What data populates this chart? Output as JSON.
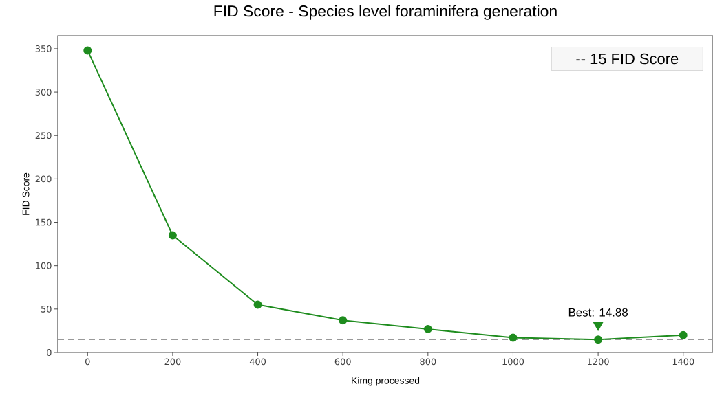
{
  "chart_data": {
    "type": "line",
    "title": "FID Score - Species level foraminifera generation",
    "xlabel": "Kimg processed",
    "ylabel": "FID Score",
    "x": [
      0,
      200,
      400,
      600,
      800,
      1000,
      1200,
      1400
    ],
    "series": [
      {
        "color": "#1e8c1e",
        "values": [
          348,
          135,
          55,
          37,
          27,
          17,
          14.88,
          20
        ]
      }
    ],
    "marker": "circle",
    "line_style": "solid",
    "xlim": [
      -70,
      1470
    ],
    "ylim": [
      0,
      365
    ],
    "xticks": [
      0,
      200,
      400,
      600,
      800,
      1000,
      1200,
      1400
    ],
    "yticks": [
      0,
      50,
      100,
      150,
      200,
      250,
      300,
      350
    ],
    "ref_lines": [
      {
        "axis": "y",
        "value": 15,
        "color": "#999999",
        "line_style": "dashed"
      }
    ],
    "annotations": [
      "-- 15 FID Score",
      {
        "text": "Best: 14.88",
        "x": 1200,
        "y": 14.88
      }
    ]
  }
}
